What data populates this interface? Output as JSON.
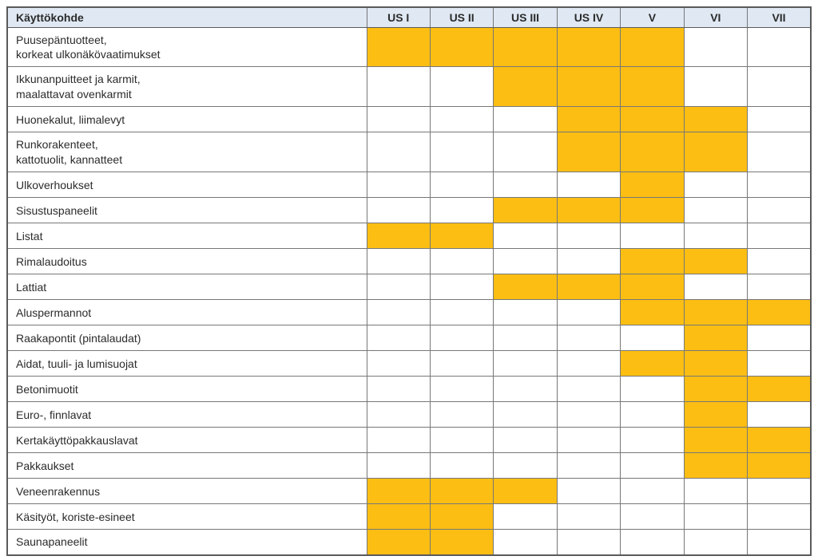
{
  "table": {
    "header": {
      "first_col": "Käyttökohde",
      "grade_cols": [
        "US I",
        "US II",
        "US III",
        "US IV",
        "V",
        "VI",
        "VII"
      ]
    },
    "rows": [
      {
        "label": "Puusepäntuotteet,\nkorkeat ulkonäkövaatimukset",
        "marks": [
          1,
          1,
          1,
          1,
          1,
          0,
          0
        ]
      },
      {
        "label": "Ikkunanpuitteet ja karmit,\nmaalattavat ovenkarmit",
        "marks": [
          0,
          0,
          1,
          1,
          1,
          0,
          0
        ]
      },
      {
        "label": "Huonekalut, liimalevyt",
        "marks": [
          0,
          0,
          0,
          1,
          1,
          1,
          0
        ]
      },
      {
        "label": "Runkorakenteet,\nkattotuolit, kannatteet",
        "marks": [
          0,
          0,
          0,
          1,
          1,
          1,
          0
        ]
      },
      {
        "label": "Ulkoverhoukset",
        "marks": [
          0,
          0,
          0,
          0,
          1,
          0,
          0
        ]
      },
      {
        "label": "Sisustuspaneelit",
        "marks": [
          0,
          0,
          1,
          1,
          1,
          0,
          0
        ]
      },
      {
        "label": "Listat",
        "marks": [
          1,
          1,
          0,
          0,
          0,
          0,
          0
        ]
      },
      {
        "label": "Rimalaudoitus",
        "marks": [
          0,
          0,
          0,
          0,
          1,
          1,
          0
        ]
      },
      {
        "label": "Lattiat",
        "marks": [
          0,
          0,
          1,
          1,
          1,
          0,
          0
        ]
      },
      {
        "label": "Aluspermannot",
        "marks": [
          0,
          0,
          0,
          0,
          1,
          1,
          1
        ]
      },
      {
        "label": "Raakapontit (pintalaudat)",
        "marks": [
          0,
          0,
          0,
          0,
          0,
          1,
          0
        ]
      },
      {
        "label": "Aidat, tuuli- ja lumisuojat",
        "marks": [
          0,
          0,
          0,
          0,
          1,
          1,
          0
        ]
      },
      {
        "label": "Betonimuotit",
        "marks": [
          0,
          0,
          0,
          0,
          0,
          1,
          1
        ]
      },
      {
        "label": "Euro-, finnlavat",
        "marks": [
          0,
          0,
          0,
          0,
          0,
          1,
          0
        ]
      },
      {
        "label": "Kertakäyttöpakkauslavat",
        "marks": [
          0,
          0,
          0,
          0,
          0,
          1,
          1
        ]
      },
      {
        "label": "Pakkaukset",
        "marks": [
          0,
          0,
          0,
          0,
          0,
          1,
          1
        ]
      },
      {
        "label": "Veneenrakennus",
        "marks": [
          1,
          1,
          1,
          0,
          0,
          0,
          0
        ]
      },
      {
        "label": "Käsityöt, koriste-esineet",
        "marks": [
          1,
          1,
          0,
          0,
          0,
          0,
          0
        ]
      },
      {
        "label": "Saunapaneelit",
        "marks": [
          1,
          1,
          0,
          0,
          0,
          0,
          0
        ]
      }
    ]
  },
  "colors": {
    "highlight": "#FCBE13",
    "header_bg": "#DFE8F3",
    "grid_line": "#777777",
    "grid_border": "#5A5A5A",
    "text": "#2B2B2B"
  }
}
